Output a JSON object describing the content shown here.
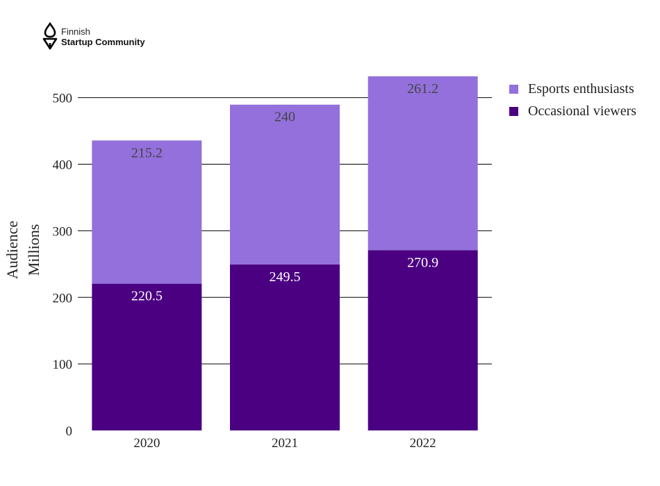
{
  "logo": {
    "line1": "Finnish",
    "line2": "Startup Community"
  },
  "chart_data": {
    "type": "bar",
    "stacked": true,
    "categories": [
      "2020",
      "2021",
      "2022"
    ],
    "series": [
      {
        "name": "Occasional viewers",
        "values": [
          220.5,
          249.5,
          270.9
        ],
        "color": "#4b0082",
        "label_color": "#ffffff"
      },
      {
        "name": "Esports enthusiasts",
        "values": [
          215.2,
          240,
          261.2
        ],
        "color": "#9370db",
        "label_color": "#444444"
      }
    ],
    "data_labels": {
      "Occasional viewers": [
        "220.5",
        "249.5",
        "270.9"
      ],
      "Esports enthusiasts": [
        "215.2",
        "240",
        "261.2"
      ]
    },
    "yticks": [
      0,
      100,
      200,
      300,
      400,
      500
    ],
    "ylim": [
      0,
      532
    ],
    "ylabel_lines": [
      "Audience",
      "Millions"
    ],
    "xlabel": "",
    "title": "",
    "grid": true,
    "legend_position": "top-right",
    "legend_order": [
      "Esports enthusiasts",
      "Occasional viewers"
    ]
  }
}
